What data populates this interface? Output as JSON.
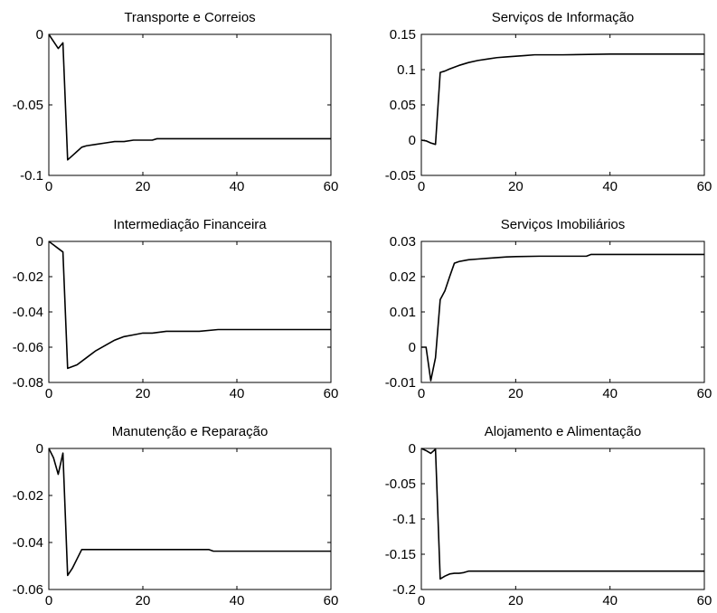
{
  "chart_data": [
    {
      "type": "line",
      "title": "Transporte e Correios",
      "xlim": [
        0,
        60
      ],
      "ylim": [
        -0.1,
        0
      ],
      "xticks": [
        0,
        20,
        40,
        60
      ],
      "xtick_labels": [
        "0",
        "20",
        "40",
        "60"
      ],
      "yticks": [
        0,
        -0.05,
        -0.1
      ],
      "ytick_labels": [
        "0",
        "-0.05",
        "-0.1"
      ],
      "grid": false,
      "series": [
        {
          "x": [
            0,
            1,
            2,
            3,
            4,
            5,
            6,
            7,
            8,
            10,
            12,
            14,
            16,
            18,
            20,
            22,
            23,
            30,
            40,
            50,
            60
          ],
          "y": [
            0,
            -0.005,
            -0.01,
            -0.006,
            -0.089,
            -0.086,
            -0.083,
            -0.08,
            -0.079,
            -0.078,
            -0.077,
            -0.076,
            -0.076,
            -0.075,
            -0.075,
            -0.075,
            -0.074,
            -0.074,
            -0.074,
            -0.074,
            -0.074
          ]
        }
      ]
    },
    {
      "type": "line",
      "title": "Serviços de Informação",
      "xlim": [
        0,
        60
      ],
      "ylim": [
        -0.05,
        0.15
      ],
      "xticks": [
        0,
        20,
        40,
        60
      ],
      "xtick_labels": [
        "0",
        "20",
        "40",
        "60"
      ],
      "yticks": [
        0.15,
        0.1,
        0.05,
        0,
        -0.05
      ],
      "ytick_labels": [
        "0.15",
        "0.1",
        "0.05",
        "0",
        "-0.05"
      ],
      "grid": false,
      "series": [
        {
          "x": [
            0,
            1,
            2,
            3,
            4,
            5,
            6,
            8,
            10,
            12,
            14,
            16,
            18,
            20,
            22,
            24,
            30,
            40,
            50,
            60
          ],
          "y": [
            0,
            -0.001,
            -0.004,
            -0.006,
            0.096,
            0.098,
            0.101,
            0.106,
            0.11,
            0.113,
            0.115,
            0.117,
            0.118,
            0.119,
            0.12,
            0.121,
            0.121,
            0.122,
            0.122,
            0.122
          ]
        }
      ]
    },
    {
      "type": "line",
      "title": "Intermediação Financeira",
      "xlim": [
        0,
        60
      ],
      "ylim": [
        -0.08,
        0
      ],
      "xticks": [
        0,
        20,
        40,
        60
      ],
      "xtick_labels": [
        "0",
        "20",
        "40",
        "60"
      ],
      "yticks": [
        0,
        -0.02,
        -0.04,
        -0.06,
        -0.08
      ],
      "ytick_labels": [
        "0",
        "-0.02",
        "-0.04",
        "-0.06",
        "-0.08"
      ],
      "grid": false,
      "series": [
        {
          "x": [
            0,
            1,
            2,
            3,
            4,
            6,
            8,
            10,
            12,
            14,
            16,
            18,
            20,
            22,
            25,
            28,
            32,
            36,
            40,
            50,
            60
          ],
          "y": [
            0,
            -0.002,
            -0.004,
            -0.006,
            -0.072,
            -0.07,
            -0.066,
            -0.062,
            -0.059,
            -0.056,
            -0.054,
            -0.053,
            -0.052,
            -0.052,
            -0.051,
            -0.051,
            -0.051,
            -0.05,
            -0.05,
            -0.05,
            -0.05
          ]
        }
      ]
    },
    {
      "type": "line",
      "title": "Serviços Imobiliários",
      "xlim": [
        0,
        60
      ],
      "ylim": [
        -0.01,
        0.03
      ],
      "xticks": [
        0,
        20,
        40,
        60
      ],
      "xtick_labels": [
        "0",
        "20",
        "40",
        "60"
      ],
      "yticks": [
        0.03,
        0.02,
        0.01,
        0,
        -0.01
      ],
      "ytick_labels": [
        "0.03",
        "0.02",
        "0.01",
        "0",
        "-0.01"
      ],
      "grid": false,
      "series": [
        {
          "x": [
            0,
            1,
            2,
            3,
            4,
            5,
            6,
            7,
            8,
            10,
            12,
            14,
            16,
            18,
            20,
            25,
            30,
            35,
            36,
            40,
            50,
            60
          ],
          "y": [
            0,
            0,
            -0.0095,
            -0.003,
            0.0135,
            0.016,
            0.02,
            0.0238,
            0.0243,
            0.0248,
            0.025,
            0.0252,
            0.0254,
            0.0256,
            0.0257,
            0.0258,
            0.0258,
            0.0258,
            0.0263,
            0.0263,
            0.0263,
            0.0263
          ]
        }
      ]
    },
    {
      "type": "line",
      "title": "Manutenção e Reparação",
      "xlim": [
        0,
        60
      ],
      "ylim": [
        -0.06,
        0
      ],
      "xticks": [
        0,
        20,
        40,
        60
      ],
      "xtick_labels": [
        "0",
        "20",
        "40",
        "60"
      ],
      "yticks": [
        0,
        -0.02,
        -0.04,
        -0.06
      ],
      "ytick_labels": [
        "0",
        "-0.02",
        "-0.04",
        "-0.06"
      ],
      "grid": false,
      "series": [
        {
          "x": [
            0,
            1,
            2,
            3,
            4,
            5,
            6,
            7,
            10,
            20,
            30,
            34,
            35,
            40,
            50,
            60
          ],
          "y": [
            0,
            -0.004,
            -0.011,
            -0.002,
            -0.054,
            -0.051,
            -0.047,
            -0.043,
            -0.043,
            -0.043,
            -0.043,
            -0.043,
            -0.0437,
            -0.0437,
            -0.0437,
            -0.0437
          ]
        }
      ]
    },
    {
      "type": "line",
      "title": "Alojamento e Alimentação",
      "xlim": [
        0,
        60
      ],
      "ylim": [
        -0.2,
        0
      ],
      "xticks": [
        0,
        20,
        40,
        60
      ],
      "xtick_labels": [
        "0",
        "20",
        "40",
        "60"
      ],
      "yticks": [
        0,
        -0.05,
        -0.1,
        -0.15,
        -0.2
      ],
      "ytick_labels": [
        "0",
        "-0.05",
        "-0.1",
        "-0.15",
        "-0.2"
      ],
      "grid": false,
      "series": [
        {
          "x": [
            0,
            1,
            2,
            3,
            4,
            5,
            6,
            7,
            8,
            9,
            10,
            15,
            20,
            30,
            40,
            50,
            60
          ],
          "y": [
            0,
            -0.003,
            -0.007,
            -0.001,
            -0.185,
            -0.181,
            -0.178,
            -0.177,
            -0.177,
            -0.176,
            -0.174,
            -0.174,
            -0.174,
            -0.174,
            -0.174,
            -0.174,
            -0.174
          ]
        }
      ]
    }
  ]
}
